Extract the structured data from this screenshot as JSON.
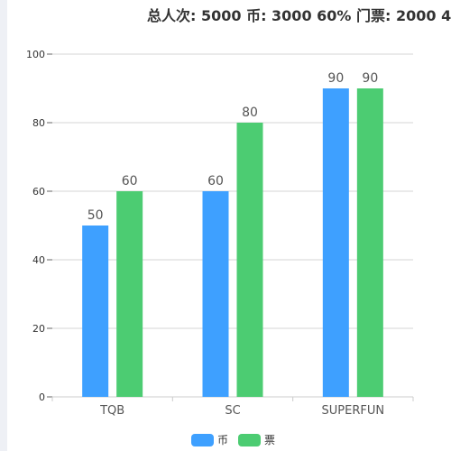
{
  "title": "总人次: 5000 币: 3000 60% 门票: 2000 4",
  "chart_data": {
    "type": "bar",
    "categories": [
      "TQB",
      "SC",
      "SUPERFUN"
    ],
    "series": [
      {
        "name": "币",
        "color": "#3ea0ff",
        "values": [
          50,
          60,
          90
        ]
      },
      {
        "name": "票",
        "color": "#4ccc72",
        "values": [
          60,
          80,
          90
        ]
      }
    ],
    "ylim": [
      0,
      100
    ],
    "yticks": [
      0,
      20,
      40,
      60,
      80,
      100
    ],
    "grid": true,
    "legend_position": "bottom"
  }
}
